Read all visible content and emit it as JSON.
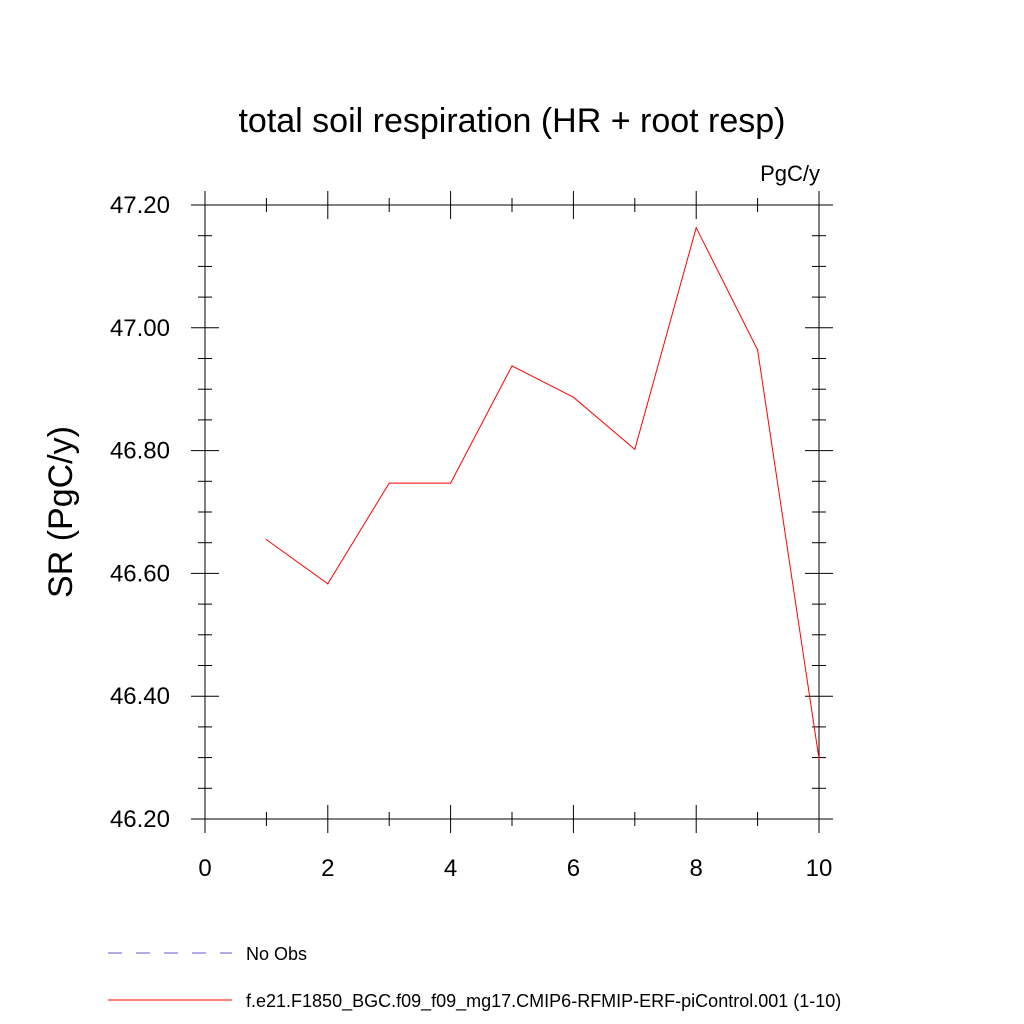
{
  "chart_data": {
    "type": "line",
    "title": "total soil respiration (HR + root resp)",
    "units_label": "PgC/y",
    "ylabel": "SR  (PgC/y)",
    "xlabel": "",
    "xlim": [
      0,
      10
    ],
    "ylim": [
      46.2,
      47.2
    ],
    "x_ticks": [
      "0",
      "2",
      "4",
      "6",
      "8",
      "10"
    ],
    "y_ticks": [
      "46.20",
      "46.40",
      "46.60",
      "46.80",
      "47.00",
      "47.20"
    ],
    "grid": false,
    "legend_position": "bottom",
    "series": [
      {
        "name": "f.e21.F1850_BGC.f09_f09_mg17.CMIP6-RFMIP-ERF-piControl.001 (1-10)",
        "color": "#ff0000",
        "style": "solid",
        "x": [
          1,
          2,
          3,
          4,
          5,
          6,
          7,
          8,
          9,
          10
        ],
        "y": [
          46.655,
          46.583,
          46.747,
          46.747,
          46.938,
          46.887,
          46.802,
          47.163,
          46.964,
          46.298
        ]
      }
    ],
    "legend": [
      {
        "label": "No Obs",
        "color": "#6a5acd",
        "style": "dashed"
      },
      {
        "label": "f.e21.F1850_BGC.f09_f09_mg17.CMIP6-RFMIP-ERF-piControl.001 (1-10)",
        "color": "#ff0000",
        "style": "solid"
      }
    ]
  }
}
